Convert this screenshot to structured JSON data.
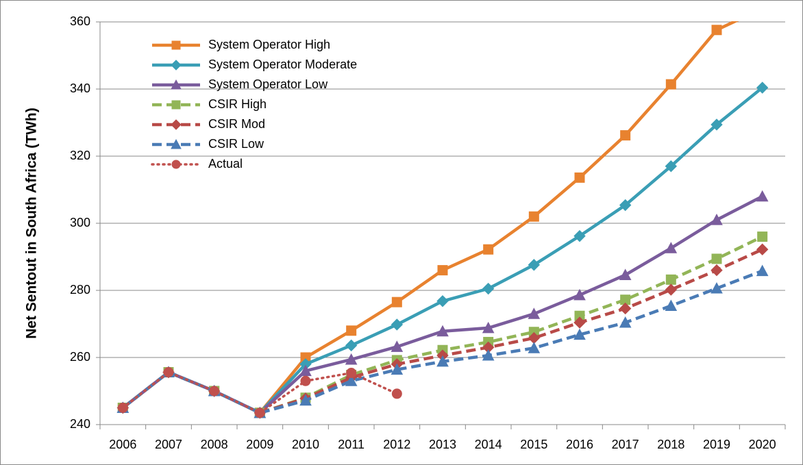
{
  "chart_data": {
    "type": "line",
    "y_label": "Net Sentout in South Africa (TWh)",
    "categories": [
      "2006",
      "2007",
      "2008",
      "2009",
      "2010",
      "2011",
      "2012",
      "2013",
      "2014",
      "2015",
      "2016",
      "2017",
      "2018",
      "2019",
      "2020"
    ],
    "ylim": [
      240,
      360
    ],
    "yticks": [
      240,
      260,
      280,
      300,
      320,
      340,
      360
    ],
    "grid": true,
    "legend": "upper left",
    "series": [
      {
        "name": "System Operator High",
        "color": "#E8822F",
        "marker": "square",
        "dash": "solid",
        "values": [
          245,
          255.6,
          250,
          243.5,
          260,
          268,
          276.5,
          286,
          292.2,
          302,
          313.6,
          326.2,
          341.4,
          357.6,
          364
        ]
      },
      {
        "name": "System Operator Moderate",
        "color": "#3A9EB5",
        "marker": "diamond",
        "dash": "solid",
        "values": [
          245,
          255.6,
          250,
          243.5,
          258,
          263.6,
          269.8,
          276.8,
          280.5,
          287.6,
          296.2,
          305.4,
          317,
          329.4,
          340.4
        ]
      },
      {
        "name": "System Operator Low",
        "color": "#7A5C9C",
        "marker": "triangle",
        "dash": "solid",
        "values": [
          245,
          255.6,
          250,
          243.5,
          256,
          259.4,
          263.2,
          267.8,
          268.8,
          273,
          278.6,
          284.6,
          292.6,
          301,
          308
        ]
      },
      {
        "name": "CSIR High",
        "color": "#92B557",
        "marker": "square",
        "dash": "dashed",
        "values": [
          245,
          255.6,
          250,
          243.5,
          248,
          254.8,
          259.2,
          262.2,
          264.6,
          267.6,
          272.4,
          277.2,
          283.2,
          289.4,
          296
        ]
      },
      {
        "name": "CSIR Mod",
        "color": "#B84A47",
        "marker": "diamond",
        "dash": "dashed",
        "values": [
          245,
          255.6,
          250,
          243.5,
          247.8,
          254,
          258,
          260.6,
          263,
          265.8,
          270.4,
          274.6,
          280.2,
          286,
          292.2
        ]
      },
      {
        "name": "CSIR Low",
        "color": "#4A7BB5",
        "marker": "triangle",
        "dash": "dashed",
        "values": [
          245,
          255.6,
          250,
          243.5,
          247.2,
          253,
          256.4,
          258.8,
          260.6,
          262.8,
          266.8,
          270.4,
          275.4,
          280.6,
          285.8
        ]
      },
      {
        "name": "Actual",
        "color": "#C0504D",
        "marker": "circle",
        "dash": "dotted",
        "values": [
          245,
          255.6,
          250,
          243.5,
          253,
          255.4,
          249.2,
          null,
          null,
          null,
          null,
          null,
          null,
          null,
          null
        ]
      }
    ]
  }
}
